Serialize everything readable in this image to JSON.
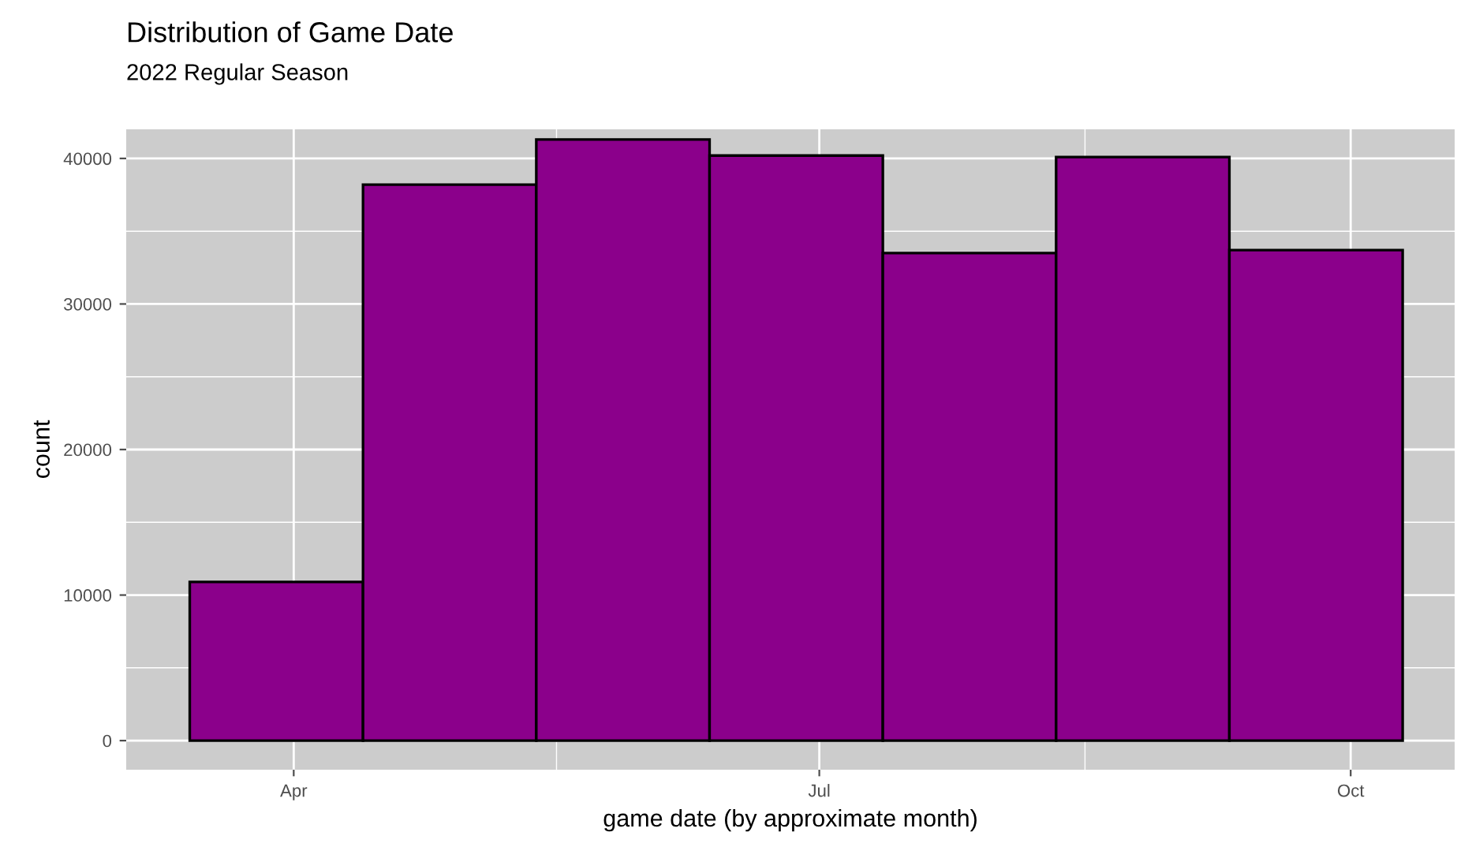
{
  "chart_data": {
    "type": "histogram",
    "title": "Distribution of Game Date",
    "subtitle": "2022 Regular Season",
    "xlabel": "game date (by approximate month)",
    "ylabel": "count",
    "bins": [
      "2022-03-14",
      "2022-04-13",
      "2022-05-13",
      "2022-06-12",
      "2022-07-12",
      "2022-08-11",
      "2022-09-10",
      "2022-10-10"
    ],
    "values": [
      10900,
      38200,
      41300,
      40200,
      33500,
      40100,
      33700
    ],
    "color": "#8b008b",
    "xlim": [
      "2022-03-03",
      "2022-10-19"
    ],
    "xticks": [
      {
        "value": "2022-04-01",
        "label": "Apr"
      },
      {
        "value": "2022-07-01",
        "label": "Jul"
      },
      {
        "value": "2022-10-01",
        "label": "Oct"
      }
    ],
    "ylim": [
      -2000,
      42000
    ],
    "yticks": [
      0,
      10000,
      20000,
      30000,
      40000
    ],
    "grid": true
  }
}
